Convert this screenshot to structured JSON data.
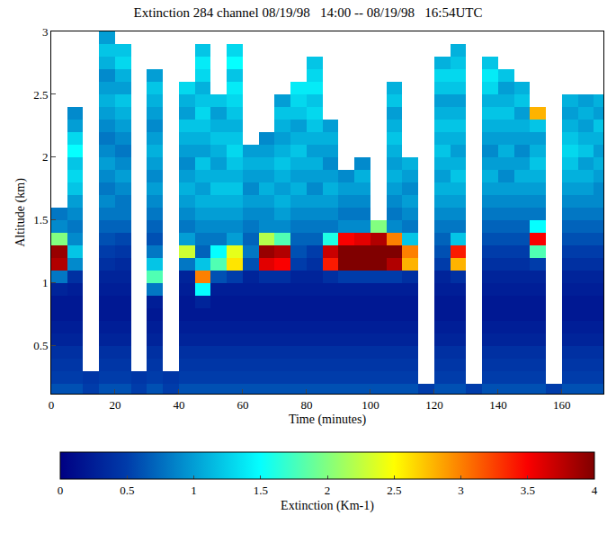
{
  "chart_data": {
    "type": "heatmap",
    "title": "Extinction 284 channel 08/19/98   14:00 -- 08/19/98   16:54UTC",
    "x_label": "Time (minutes)",
    "y_label": "Altitude (km)",
    "color": "Jet",
    "x": [
      2.5,
      7.5,
      12.5,
      17.5,
      22.5,
      27.5,
      32.5,
      37.5,
      42.5,
      47.5,
      52.5,
      57.5,
      62.5,
      67.5,
      72.5,
      77.5,
      82.5,
      87.5,
      92.5,
      97.5,
      102.5,
      107.5,
      112.5,
      117.5,
      122.5,
      127.5,
      132.5,
      137.5,
      142.5,
      147.5,
      152.5,
      157.5,
      162.5,
      167.5,
      172.5
    ],
    "y": [
      0.15,
      0.25,
      0.35,
      0.45,
      0.55,
      0.65,
      0.75,
      0.85,
      0.95,
      1.05,
      1.15,
      1.25,
      1.35,
      1.45,
      1.55,
      1.65,
      1.75,
      1.85,
      1.95,
      2.05,
      2.15,
      2.25,
      2.35,
      2.45,
      2.55,
      2.65,
      2.75,
      2.85,
      2.95
    ],
    "z_by_time": [
      [
        0.6,
        0.5,
        0.45,
        0.4,
        0.3,
        0.25,
        0.2,
        0.2,
        0.3,
        0.8,
        3.8,
        3.9,
        2.0,
        0.9,
        0.8,
        null,
        null,
        null,
        null,
        null,
        null,
        null,
        null,
        null,
        null,
        null,
        null,
        null,
        null
      ],
      [
        0.6,
        0.5,
        0.45,
        0.4,
        0.3,
        0.25,
        0.2,
        0.2,
        0.25,
        0.4,
        0.9,
        1.2,
        0.9,
        0.8,
        0.9,
        1.0,
        1.2,
        1.3,
        1.2,
        1.5,
        1.3,
        1.0,
        0.9,
        null,
        null,
        null,
        null,
        null,
        null
      ],
      [
        0.5,
        0.45,
        null,
        null,
        null,
        null,
        null,
        null,
        null,
        null,
        null,
        null,
        null,
        null,
        null,
        null,
        null,
        null,
        null,
        null,
        null,
        null,
        null,
        null,
        null,
        null,
        null,
        null,
        null
      ],
      [
        0.6,
        0.5,
        0.45,
        0.4,
        0.3,
        0.25,
        0.2,
        0.2,
        0.25,
        0.3,
        0.4,
        0.5,
        0.6,
        0.7,
        0.8,
        0.9,
        0.8,
        0.9,
        1.0,
        0.9,
        0.8,
        0.9,
        1.0,
        1.1,
        1.0,
        0.9,
        1.1,
        1.2,
        1.0
      ],
      [
        0.6,
        0.5,
        0.45,
        0.4,
        0.3,
        0.25,
        0.2,
        0.2,
        0.25,
        0.3,
        0.35,
        0.45,
        0.55,
        0.7,
        0.8,
        0.8,
        0.9,
        1.0,
        0.9,
        0.8,
        0.9,
        1.0,
        1.1,
        1.2,
        1.0,
        1.1,
        1.3,
        1.2,
        null
      ],
      [
        0.5,
        0.45,
        null,
        null,
        null,
        null,
        null,
        null,
        null,
        null,
        null,
        null,
        null,
        null,
        null,
        null,
        null,
        null,
        null,
        null,
        null,
        null,
        null,
        null,
        null,
        null,
        null,
        null,
        null
      ],
      [
        0.6,
        0.5,
        0.45,
        0.4,
        0.3,
        0.25,
        0.2,
        0.25,
        0.8,
        1.8,
        1.2,
        0.8,
        0.6,
        0.7,
        0.8,
        0.9,
        1.0,
        0.9,
        1.0,
        1.1,
        1.0,
        0.9,
        1.0,
        1.1,
        1.2,
        1.0,
        null,
        null,
        null
      ],
      [
        0.5,
        0.45,
        null,
        null,
        null,
        null,
        null,
        null,
        null,
        null,
        null,
        null,
        null,
        null,
        null,
        null,
        null,
        null,
        null,
        null,
        null,
        null,
        null,
        null,
        null,
        null,
        null,
        null,
        null
      ],
      [
        0.6,
        0.5,
        0.45,
        0.4,
        0.3,
        0.25,
        0.2,
        0.2,
        0.25,
        0.3,
        0.8,
        2.3,
        1.0,
        0.8,
        0.9,
        1.0,
        1.1,
        1.0,
        0.9,
        1.0,
        1.1,
        1.2,
        1.0,
        1.1,
        1.3,
        null,
        null,
        null,
        null
      ],
      [
        0.6,
        0.5,
        0.45,
        0.4,
        0.3,
        0.25,
        0.2,
        0.3,
        1.5,
        3.0,
        1.2,
        0.7,
        0.8,
        0.9,
        1.0,
        1.1,
        1.0,
        1.1,
        1.2,
        1.0,
        1.1,
        1.2,
        1.3,
        1.2,
        1.1,
        1.3,
        1.4,
        1.2,
        null
      ],
      [
        0.6,
        0.5,
        0.45,
        0.4,
        0.3,
        0.25,
        0.2,
        0.2,
        0.25,
        0.6,
        1.8,
        1.5,
        0.8,
        0.9,
        1.0,
        1.1,
        1.2,
        1.1,
        1.0,
        1.1,
        1.2,
        1.1,
        1.0,
        1.2,
        null,
        null,
        null,
        null,
        null
      ],
      [
        0.6,
        0.5,
        0.45,
        0.4,
        0.3,
        0.25,
        0.2,
        0.2,
        0.25,
        0.5,
        2.6,
        2.4,
        1.0,
        0.9,
        1.0,
        1.1,
        1.2,
        1.1,
        1.2,
        1.3,
        1.2,
        1.1,
        1.2,
        1.3,
        1.4,
        1.2,
        1.5,
        1.3,
        null
      ],
      [
        0.6,
        0.5,
        0.45,
        0.4,
        0.3,
        0.25,
        0.2,
        0.2,
        0.25,
        0.3,
        0.6,
        0.8,
        0.7,
        0.8,
        0.9,
        1.0,
        0.9,
        1.0,
        1.1,
        1.0,
        null,
        null,
        null,
        null,
        null,
        null,
        null,
        null,
        null
      ],
      [
        0.6,
        0.5,
        0.45,
        0.4,
        0.3,
        0.25,
        0.2,
        0.2,
        0.25,
        0.4,
        3.6,
        3.9,
        2.2,
        0.9,
        0.9,
        1.0,
        1.1,
        1.0,
        1.1,
        1.0,
        0.9,
        null,
        null,
        null,
        null,
        null,
        null,
        null,
        null
      ],
      [
        0.6,
        0.5,
        0.45,
        0.4,
        0.3,
        0.25,
        0.2,
        0.2,
        0.25,
        0.4,
        3.5,
        3.8,
        1.8,
        0.9,
        1.0,
        1.1,
        1.0,
        1.1,
        1.2,
        1.1,
        1.0,
        1.1,
        1.2,
        1.0,
        null,
        null,
        null,
        null,
        null
      ],
      [
        0.6,
        0.5,
        0.45,
        0.4,
        0.3,
        0.25,
        0.2,
        0.2,
        0.25,
        0.3,
        0.5,
        0.6,
        0.7,
        0.8,
        0.9,
        1.0,
        1.1,
        1.0,
        1.1,
        1.2,
        1.1,
        1.0,
        1.2,
        1.3,
        1.4,
        null,
        null,
        null,
        null
      ],
      [
        0.6,
        0.5,
        0.45,
        0.4,
        0.3,
        0.25,
        0.2,
        0.2,
        0.25,
        0.3,
        0.4,
        0.5,
        0.7,
        0.8,
        0.9,
        1.0,
        0.9,
        1.0,
        1.1,
        1.0,
        1.1,
        1.2,
        1.3,
        1.2,
        1.4,
        1.3,
        1.2,
        null,
        null
      ],
      [
        0.6,
        0.5,
        0.45,
        0.4,
        0.3,
        0.25,
        0.2,
        0.2,
        0.25,
        0.4,
        3.4,
        3.7,
        1.6,
        0.8,
        0.9,
        1.0,
        1.1,
        1.0,
        0.9,
        1.0,
        1.1,
        1.0,
        null,
        null,
        null,
        null,
        null,
        null,
        null
      ],
      [
        0.6,
        0.5,
        0.45,
        0.4,
        0.3,
        0.25,
        0.2,
        0.2,
        0.25,
        0.5,
        4.0,
        4.0,
        3.5,
        0.9,
        0.8,
        0.9,
        1.0,
        0.9,
        null,
        null,
        null,
        null,
        null,
        null,
        null,
        null,
        null,
        null,
        null
      ],
      [
        0.6,
        0.5,
        0.45,
        0.4,
        0.3,
        0.25,
        0.2,
        0.2,
        0.25,
        0.5,
        4.0,
        4.0,
        3.6,
        0.9,
        0.8,
        0.9,
        1.0,
        1.1,
        0.9,
        null,
        null,
        null,
        null,
        null,
        null,
        null,
        null,
        null,
        null
      ],
      [
        0.6,
        0.5,
        0.45,
        0.4,
        0.3,
        0.25,
        0.2,
        0.2,
        0.25,
        0.5,
        4.0,
        4.0,
        3.8,
        2.0,
        null,
        null,
        null,
        null,
        null,
        null,
        null,
        null,
        null,
        null,
        null,
        null,
        null,
        null,
        null
      ],
      [
        0.6,
        0.5,
        0.45,
        0.4,
        0.3,
        0.25,
        0.2,
        0.2,
        0.25,
        0.5,
        3.8,
        4.0,
        3.0,
        0.9,
        0.8,
        0.9,
        1.0,
        1.1,
        1.0,
        1.1,
        1.2,
        1.1,
        1.0,
        1.2,
        1.1,
        null,
        null,
        null,
        null
      ],
      [
        0.6,
        0.5,
        0.45,
        0.4,
        0.3,
        0.25,
        0.2,
        0.2,
        0.25,
        0.4,
        2.8,
        3.0,
        1.2,
        0.8,
        0.9,
        1.0,
        0.9,
        1.0,
        1.1,
        null,
        null,
        null,
        null,
        null,
        null,
        null,
        null,
        null,
        null
      ],
      [
        0.5,
        null,
        null,
        null,
        null,
        null,
        null,
        null,
        null,
        null,
        null,
        null,
        null,
        null,
        null,
        null,
        null,
        null,
        null,
        null,
        null,
        null,
        null,
        null,
        null,
        null,
        null,
        null,
        null
      ],
      [
        0.6,
        0.5,
        0.45,
        0.4,
        0.3,
        0.25,
        0.2,
        0.2,
        0.25,
        0.3,
        0.5,
        0.6,
        0.7,
        0.8,
        0.9,
        1.0,
        1.1,
        1.0,
        1.1,
        1.2,
        1.1,
        1.2,
        1.1,
        1.0,
        1.2,
        1.3,
        1.1,
        null,
        null
      ],
      [
        0.6,
        0.5,
        0.45,
        0.4,
        0.3,
        0.25,
        0.2,
        0.2,
        0.25,
        0.4,
        2.8,
        3.4,
        1.2,
        0.8,
        0.9,
        1.0,
        1.1,
        1.2,
        1.1,
        1.0,
        1.1,
        1.2,
        1.1,
        1.0,
        1.2,
        1.3,
        1.2,
        1.1,
        null
      ],
      [
        0.5,
        null,
        null,
        null,
        null,
        null,
        null,
        null,
        null,
        null,
        null,
        null,
        null,
        null,
        null,
        null,
        null,
        null,
        null,
        null,
        null,
        null,
        null,
        null,
        null,
        null,
        null,
        null,
        null
      ],
      [
        0.6,
        0.5,
        0.45,
        0.4,
        0.3,
        0.25,
        0.2,
        0.2,
        0.25,
        0.3,
        0.4,
        0.5,
        0.6,
        0.7,
        0.8,
        0.9,
        1.0,
        1.1,
        1.0,
        0.9,
        1.0,
        1.1,
        1.2,
        1.1,
        1.3,
        1.4,
        1.2,
        null,
        null
      ],
      [
        0.6,
        0.5,
        0.45,
        0.4,
        0.3,
        0.25,
        0.2,
        0.2,
        0.25,
        0.3,
        0.4,
        0.5,
        0.6,
        0.7,
        0.8,
        0.9,
        1.0,
        0.9,
        1.0,
        1.1,
        1.0,
        1.1,
        1.2,
        1.1,
        1.0,
        1.2,
        null,
        null,
        null
      ],
      [
        0.6,
        0.5,
        0.45,
        0.4,
        0.3,
        0.25,
        0.2,
        0.2,
        0.25,
        0.3,
        0.4,
        0.5,
        0.6,
        0.7,
        0.8,
        0.9,
        1.0,
        1.1,
        1.0,
        0.9,
        1.0,
        1.1,
        1.0,
        1.2,
        1.1,
        null,
        null,
        null,
        null
      ],
      [
        0.6,
        0.5,
        0.45,
        0.4,
        0.3,
        0.25,
        0.2,
        0.2,
        0.25,
        0.3,
        0.5,
        1.8,
        3.5,
        1.5,
        0.8,
        0.9,
        1.0,
        1.1,
        1.2,
        1.1,
        1.0,
        1.2,
        2.8,
        null,
        null,
        null,
        null,
        null,
        null
      ],
      [
        0.5,
        null,
        null,
        null,
        null,
        null,
        null,
        null,
        null,
        null,
        null,
        null,
        null,
        null,
        null,
        null,
        null,
        null,
        null,
        null,
        null,
        null,
        null,
        null,
        null,
        null,
        null,
        null,
        null
      ],
      [
        0.6,
        0.5,
        0.45,
        0.4,
        0.3,
        0.25,
        0.2,
        0.2,
        0.25,
        0.3,
        0.4,
        0.5,
        0.6,
        0.7,
        0.8,
        0.9,
        1.0,
        1.1,
        1.2,
        1.3,
        1.2,
        1.1,
        1.0,
        1.1,
        null,
        null,
        null,
        null,
        null
      ],
      [
        0.6,
        0.5,
        0.45,
        0.4,
        0.3,
        0.25,
        0.2,
        0.2,
        0.25,
        0.3,
        0.4,
        0.5,
        0.6,
        0.7,
        0.8,
        0.9,
        1.0,
        1.1,
        1.0,
        1.2,
        1.1,
        1.0,
        1.1,
        1.0,
        null,
        null,
        null,
        null,
        null
      ],
      [
        0.6,
        0.5,
        0.45,
        0.4,
        0.3,
        0.25,
        0.2,
        0.2,
        0.25,
        0.3,
        0.4,
        0.5,
        0.6,
        0.7,
        0.8,
        0.9,
        0.9,
        1.0,
        1.1,
        1.0,
        1.1,
        1.2,
        1.0,
        1.1,
        null,
        null,
        null,
        null,
        null
      ]
    ],
    "xlim": [
      0,
      173
    ],
    "xticks": [
      0,
      20,
      40,
      60,
      80,
      100,
      120,
      140,
      160
    ],
    "ylim": [
      0.12,
      3
    ],
    "yticks": [
      0.5,
      1,
      1.5,
      2,
      2.5,
      3
    ],
    "colorbar": {
      "title": "Extinction (Km-1)",
      "range": [
        0,
        4
      ],
      "ticks": [
        0,
        0.5,
        1,
        1.5,
        2,
        2.5,
        3,
        3.5,
        4
      ]
    }
  }
}
